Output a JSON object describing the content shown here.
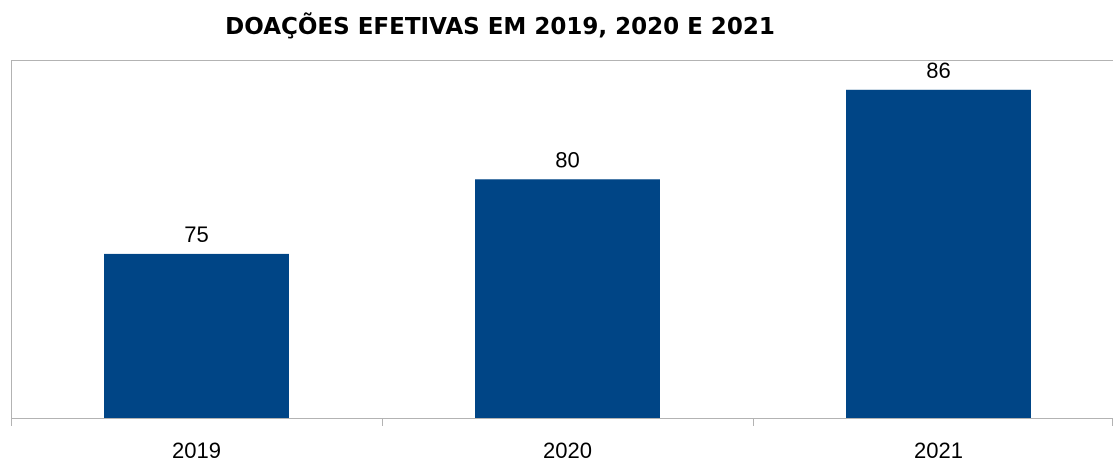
{
  "chart_data": {
    "type": "bar",
    "title": "DOAÇÕES EFETIVAS EM 2019, 2020 E 2021",
    "xlabel": "",
    "ylabel": "",
    "categories": [
      "2019",
      "2020",
      "2021"
    ],
    "values": [
      75,
      80,
      86
    ],
    "data_labels": [
      "75",
      "80",
      "86"
    ],
    "ylim": [
      64,
      88
    ],
    "grid": false,
    "legend": "none",
    "bar_color": "#004586",
    "plot_border_color": "#b3b3b3",
    "axis_color": "#b3b3b3"
  }
}
